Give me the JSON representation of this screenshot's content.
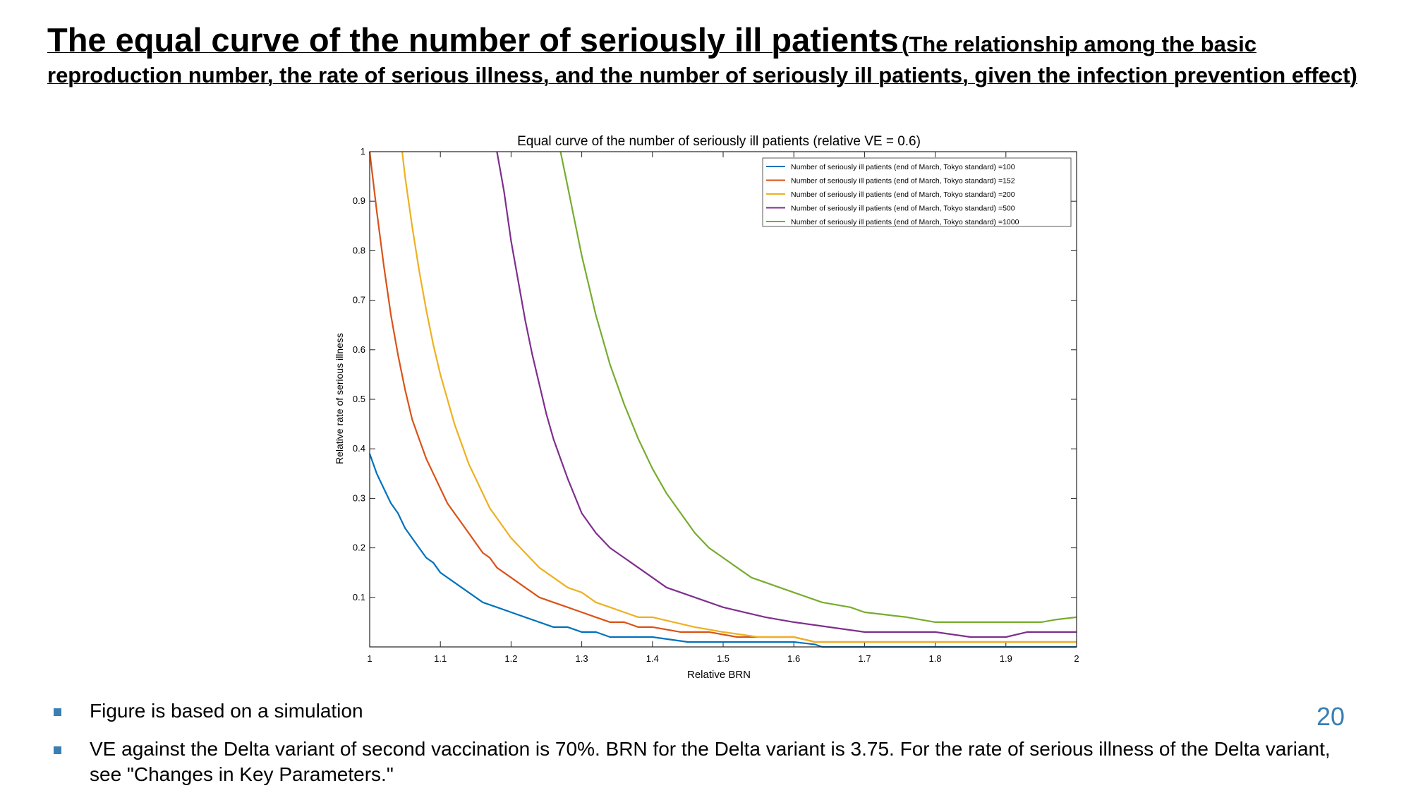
{
  "slide": {
    "title_main": "The equal curve of the number of seriously ill patients",
    "title_sub": "(The relationship among the basic reproduction number, the rate of serious illness, and the number of seriously ill patients, given the infection prevention effect)",
    "bullets": [
      "Figure is based on a simulation",
      "VE against the Delta variant of second vaccination is 70%. BRN for the Delta variant is 3.75. For the rate of serious illness of the Delta variant, see \"Changes in Key Parameters.\""
    ],
    "page_number": "20",
    "accent_color": "#3b7fb2"
  },
  "chart_data": {
    "type": "line",
    "title": "Equal curve of the number of seriously ill patients (relative VE = 0.6)",
    "xlabel": "Relative BRN",
    "ylabel": "Relative rate of serious illness",
    "xlim": [
      1,
      2
    ],
    "ylim": [
      0,
      1
    ],
    "xticks": [
      "1",
      "1.1",
      "1.2",
      "1.3",
      "1.4",
      "1.5",
      "1.6",
      "1.7",
      "1.8",
      "1.9",
      "2"
    ],
    "yticks": [
      "0.1",
      "0.2",
      "0.3",
      "0.4",
      "0.5",
      "0.6",
      "0.7",
      "0.8",
      "0.9",
      "1"
    ],
    "grid": false,
    "legend_position": "top-right",
    "series": [
      {
        "name": "Number of seriously ill patients (end of March, Tokyo standard) =100",
        "color": "#0072bd",
        "x": [
          1.0,
          1.01,
          1.02,
          1.03,
          1.04,
          1.05,
          1.06,
          1.07,
          1.08,
          1.09,
          1.1,
          1.12,
          1.14,
          1.16,
          1.18,
          1.2,
          1.22,
          1.24,
          1.26,
          1.28,
          1.3,
          1.32,
          1.34,
          1.36,
          1.38,
          1.4,
          1.45,
          1.5,
          1.55,
          1.6,
          1.63,
          1.64,
          2.0
        ],
        "y": [
          0.39,
          0.35,
          0.32,
          0.29,
          0.27,
          0.24,
          0.22,
          0.2,
          0.18,
          0.17,
          0.15,
          0.13,
          0.11,
          0.09,
          0.08,
          0.07,
          0.06,
          0.05,
          0.04,
          0.04,
          0.03,
          0.03,
          0.02,
          0.02,
          0.02,
          0.02,
          0.01,
          0.01,
          0.01,
          0.01,
          0.005,
          0.0,
          0.0
        ]
      },
      {
        "name": "Number of seriously ill patients (end of March, Tokyo standard) =152",
        "color": "#d95319",
        "x": [
          1.0,
          1.01,
          1.02,
          1.03,
          1.04,
          1.05,
          1.06,
          1.07,
          1.08,
          1.09,
          1.1,
          1.11,
          1.12,
          1.13,
          1.14,
          1.15,
          1.16,
          1.17,
          1.18,
          1.19,
          1.2,
          1.22,
          1.24,
          1.26,
          1.28,
          1.3,
          1.32,
          1.34,
          1.36,
          1.38,
          1.4,
          1.44,
          1.48,
          1.52,
          1.56,
          1.6,
          1.63,
          2.0
        ],
        "y": [
          1.0,
          0.88,
          0.77,
          0.67,
          0.59,
          0.52,
          0.46,
          0.42,
          0.38,
          0.35,
          0.32,
          0.29,
          0.27,
          0.25,
          0.23,
          0.21,
          0.19,
          0.18,
          0.16,
          0.15,
          0.14,
          0.12,
          0.1,
          0.09,
          0.08,
          0.07,
          0.06,
          0.05,
          0.05,
          0.04,
          0.04,
          0.03,
          0.03,
          0.02,
          0.02,
          0.02,
          0.01,
          0.01
        ]
      },
      {
        "name": "Number of seriously ill patients (end of March, Tokyo standard) =200",
        "color": "#edb120",
        "x": [
          1.046,
          1.05,
          1.06,
          1.07,
          1.08,
          1.09,
          1.1,
          1.11,
          1.12,
          1.13,
          1.14,
          1.15,
          1.16,
          1.17,
          1.18,
          1.19,
          1.2,
          1.22,
          1.24,
          1.26,
          1.28,
          1.3,
          1.32,
          1.34,
          1.36,
          1.38,
          1.4,
          1.43,
          1.46,
          1.5,
          1.55,
          1.6,
          1.63,
          2.0
        ],
        "y": [
          1.0,
          0.95,
          0.85,
          0.76,
          0.68,
          0.61,
          0.55,
          0.5,
          0.45,
          0.41,
          0.37,
          0.34,
          0.31,
          0.28,
          0.26,
          0.24,
          0.22,
          0.19,
          0.16,
          0.14,
          0.12,
          0.11,
          0.09,
          0.08,
          0.07,
          0.06,
          0.06,
          0.05,
          0.04,
          0.03,
          0.02,
          0.02,
          0.01,
          0.01
        ]
      },
      {
        "name": "Number of seriously ill patients (end of March, Tokyo standard) =500",
        "color": "#7e2f8e",
        "x": [
          1.18,
          1.19,
          1.2,
          1.21,
          1.22,
          1.23,
          1.24,
          1.25,
          1.26,
          1.27,
          1.28,
          1.3,
          1.32,
          1.34,
          1.36,
          1.38,
          1.4,
          1.42,
          1.44,
          1.46,
          1.48,
          1.5,
          1.53,
          1.56,
          1.6,
          1.65,
          1.7,
          1.75,
          1.8,
          1.85,
          1.9,
          1.93,
          2.0
        ],
        "y": [
          1.0,
          0.92,
          0.82,
          0.74,
          0.66,
          0.59,
          0.53,
          0.47,
          0.42,
          0.38,
          0.34,
          0.27,
          0.23,
          0.2,
          0.18,
          0.16,
          0.14,
          0.12,
          0.11,
          0.1,
          0.09,
          0.08,
          0.07,
          0.06,
          0.05,
          0.04,
          0.03,
          0.03,
          0.03,
          0.02,
          0.02,
          0.03,
          0.03
        ]
      },
      {
        "name": "Number of seriously ill patients (end of March, Tokyo standard) =1000",
        "color": "#77ac30",
        "x": [
          1.27,
          1.28,
          1.29,
          1.3,
          1.31,
          1.32,
          1.33,
          1.34,
          1.35,
          1.36,
          1.38,
          1.4,
          1.42,
          1.44,
          1.46,
          1.48,
          1.5,
          1.52,
          1.54,
          1.56,
          1.58,
          1.6,
          1.62,
          1.64,
          1.66,
          1.68,
          1.7,
          1.73,
          1.76,
          1.8,
          1.85,
          1.9,
          1.95,
          1.97,
          2.0
        ],
        "y": [
          1.0,
          0.93,
          0.86,
          0.79,
          0.73,
          0.67,
          0.62,
          0.57,
          0.53,
          0.49,
          0.42,
          0.36,
          0.31,
          0.27,
          0.23,
          0.2,
          0.18,
          0.16,
          0.14,
          0.13,
          0.12,
          0.11,
          0.1,
          0.09,
          0.085,
          0.08,
          0.07,
          0.065,
          0.06,
          0.05,
          0.05,
          0.05,
          0.05,
          0.055,
          0.06
        ]
      }
    ]
  }
}
